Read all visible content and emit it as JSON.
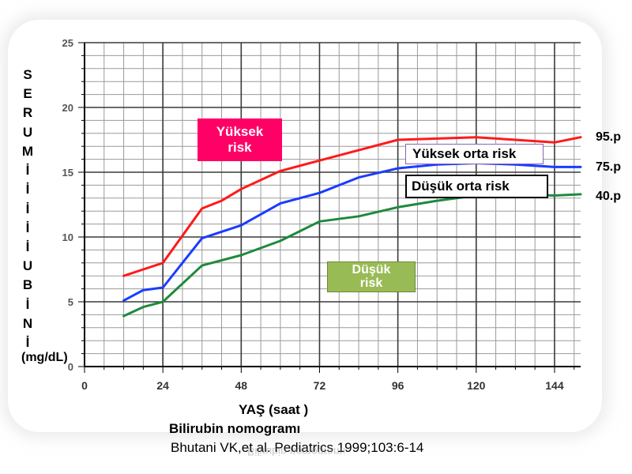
{
  "chart_data": {
    "type": "line",
    "title": "Bilirubin nomogramı",
    "source": "Bhutani VK,et al. Pediatrics 1999;103:6-14",
    "xlabel": "YAŞ (saat )",
    "ylabel_letters": [
      "S",
      "E",
      "R",
      "U",
      "M",
      "İ",
      "İ",
      "İ",
      "İ",
      "İ",
      "U",
      "B",
      "İ",
      "N",
      "İ"
    ],
    "ylabel_unit": "(mg/dL)",
    "xlim": [
      0,
      152
    ],
    "ylim": [
      0,
      25
    ],
    "xticks": [
      "0",
      "24",
      "48",
      "72",
      "96",
      "120",
      "144"
    ],
    "yticks": [
      "0",
      "5",
      "10",
      "15",
      "20",
      "25"
    ],
    "grid": true,
    "series": [
      {
        "name": "95.p",
        "color": "#ff1a1a",
        "x": [
          12,
          18,
          24,
          36,
          42,
          48,
          60,
          72,
          84,
          96,
          108,
          120,
          132,
          144,
          152
        ],
        "y": [
          7.0,
          7.5,
          8.0,
          12.2,
          12.8,
          13.7,
          15.1,
          15.9,
          16.7,
          17.5,
          17.6,
          17.7,
          17.5,
          17.3,
          17.7
        ]
      },
      {
        "name": "75.p",
        "color": "#1a3cff",
        "x": [
          12,
          18,
          24,
          36,
          48,
          60,
          72,
          84,
          96,
          108,
          120,
          132,
          144,
          152
        ],
        "y": [
          5.1,
          5.9,
          6.1,
          9.9,
          10.9,
          12.6,
          13.4,
          14.6,
          15.3,
          15.6,
          15.7,
          15.6,
          15.4,
          15.4
        ]
      },
      {
        "name": "40.p",
        "color": "#1e8a3c",
        "x": [
          12,
          18,
          24,
          36,
          48,
          60,
          72,
          84,
          96,
          108,
          120,
          132,
          144,
          152
        ],
        "y": [
          3.9,
          4.6,
          5.0,
          7.8,
          8.6,
          9.7,
          11.2,
          11.6,
          12.3,
          12.8,
          13.2,
          13.3,
          13.2,
          13.3
        ]
      }
    ],
    "zones": [
      {
        "label": "Yüksek risk",
        "line1": "Yüksek",
        "line2": "risk",
        "bg": "#ff0066",
        "fg": "#ffffff"
      },
      {
        "label": "Yüksek orta risk",
        "bg": "#ffffff",
        "fg": "#000000",
        "border": "#8a66b0"
      },
      {
        "label": "Düşük orta risk",
        "bg": "#ffffff",
        "fg": "#000000",
        "border": "#000000"
      },
      {
        "label": "Düşük risk",
        "line1": "Düşük",
        "line2": "risk",
        "bg": "#99bb55",
        "fg": "#ffffff"
      }
    ]
  }
}
